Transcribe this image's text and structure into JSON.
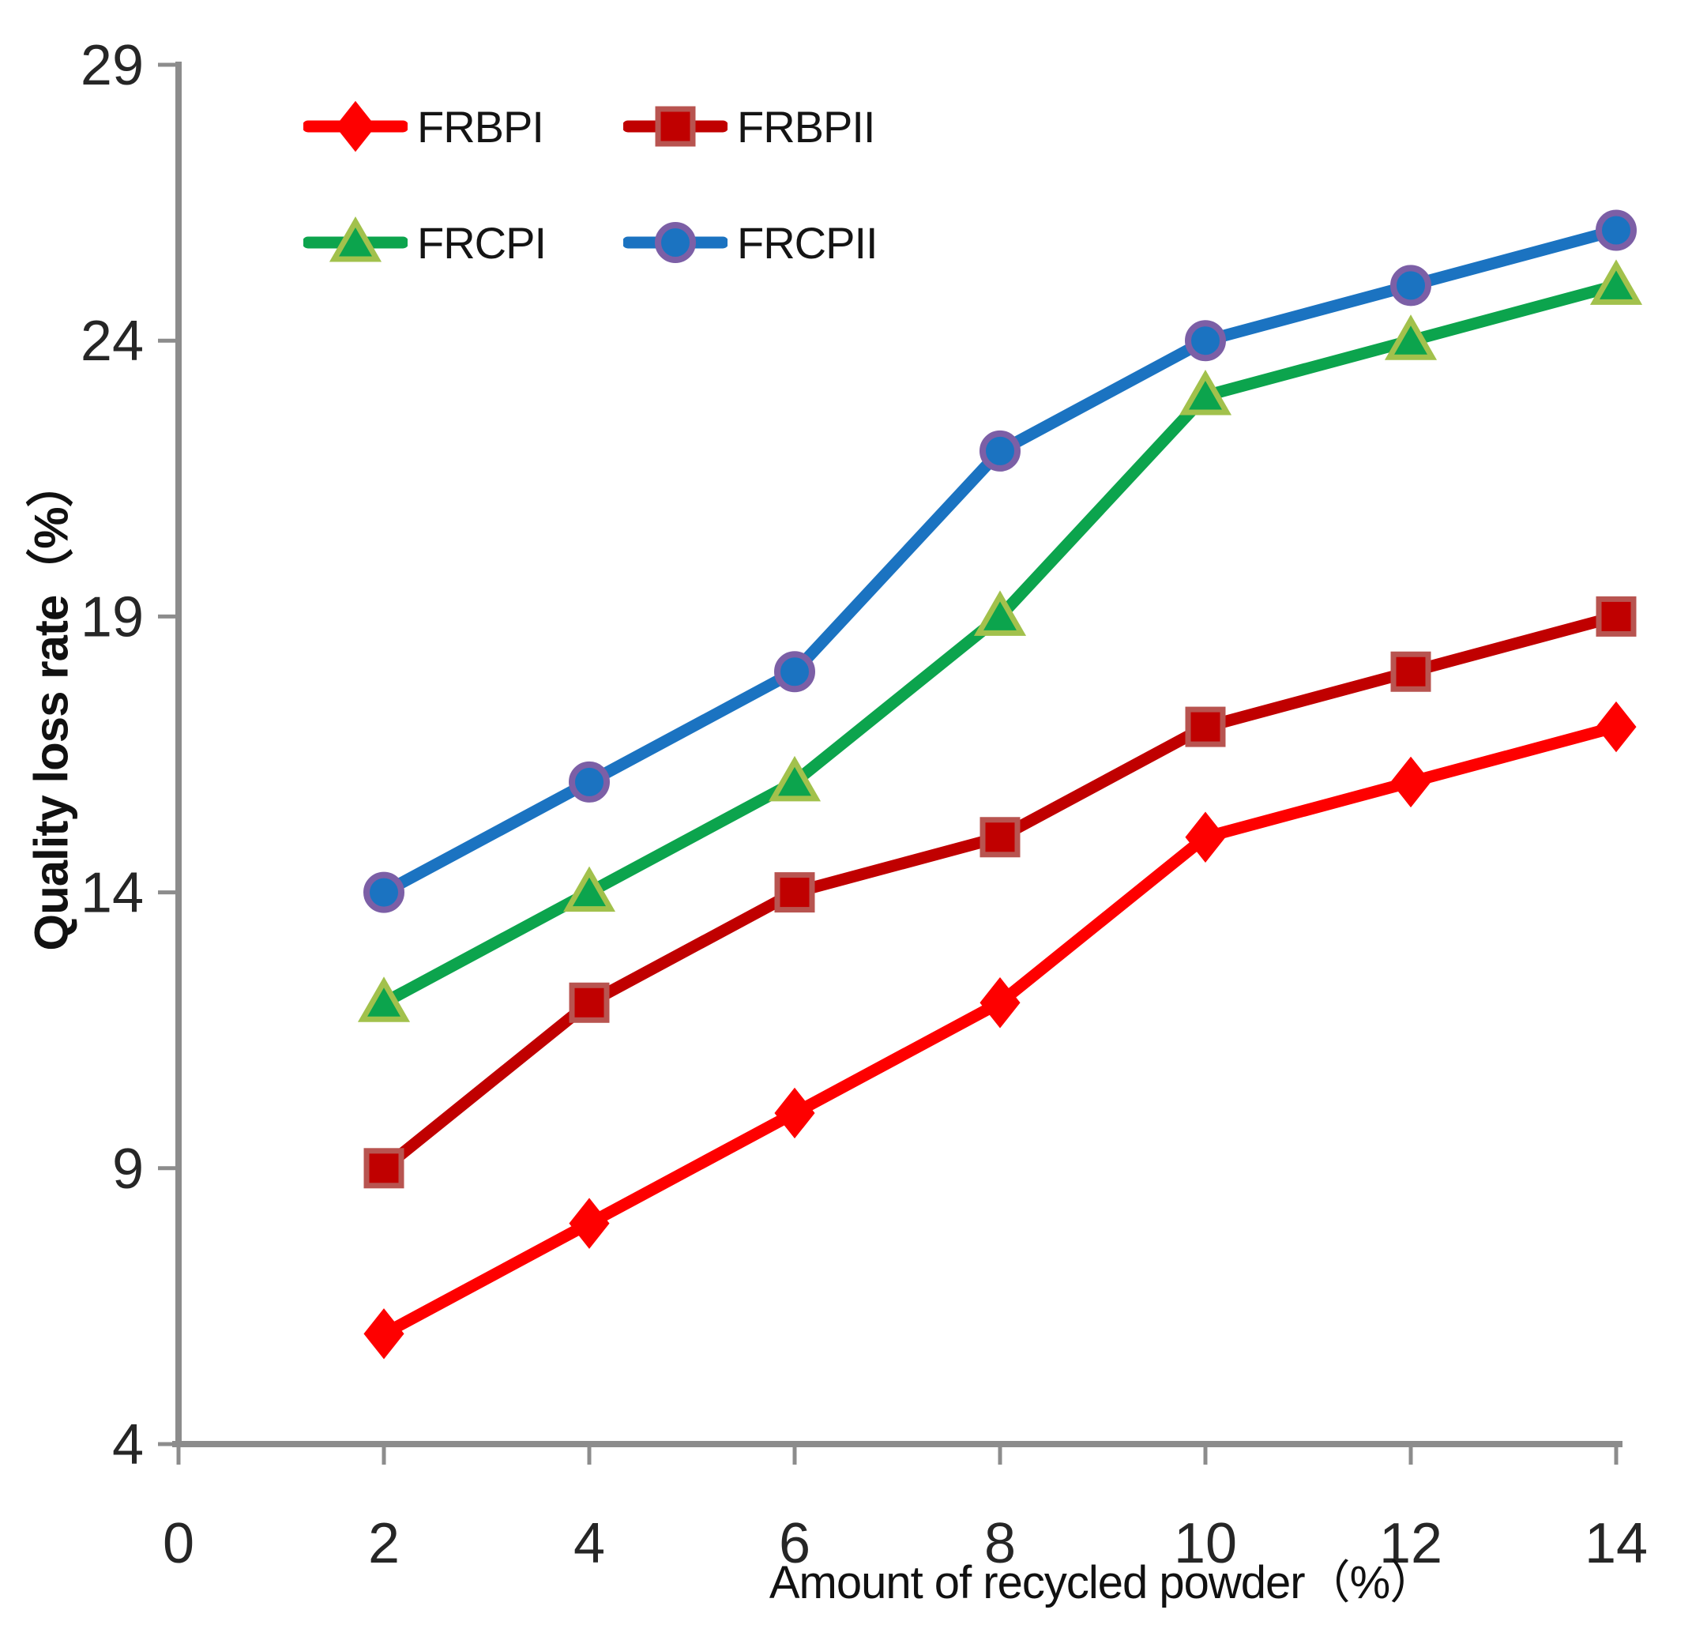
{
  "figure": {
    "background": "#ffffff"
  },
  "chart_data": {
    "type": "line",
    "title": "",
    "xlabel": "Amount of recycled powder（%）",
    "ylabel": "Quality loss rate（%）",
    "x": [
      2,
      4,
      6,
      8,
      10,
      12,
      14
    ],
    "x_ticks": [
      "0",
      "2",
      "4",
      "6",
      "8",
      "10",
      "12",
      "14"
    ],
    "x_tick_values": [
      0,
      2,
      4,
      6,
      8,
      10,
      12,
      14
    ],
    "y_ticks": [
      "4",
      "9",
      "14",
      "19",
      "24",
      "29"
    ],
    "y_tick_values": [
      4,
      9,
      14,
      19,
      24,
      29
    ],
    "xlim": [
      0,
      14
    ],
    "ylim": [
      4,
      29
    ],
    "grid": false,
    "legend_position": "inside-top-left",
    "axis_color": "#8C8C8C",
    "tick_label_color": "#262626",
    "series": [
      {
        "name": "FRBPI",
        "marker": "diamond",
        "color": "#FE0000",
        "marker_fill": "#FE0000",
        "marker_stroke": "#FE0000",
        "values": [
          6,
          8,
          10,
          12,
          15,
          16,
          17
        ]
      },
      {
        "name": "FRBPII",
        "marker": "square",
        "color": "#C00000",
        "marker_fill": "#C00000",
        "marker_stroke": "#B85450",
        "values": [
          9,
          12,
          14,
          15,
          17,
          18,
          19
        ]
      },
      {
        "name": "FRCPI",
        "marker": "triangle",
        "color": "#0CA44D",
        "marker_fill": "#0CA44D",
        "marker_stroke": "#A2C14C",
        "values": [
          12,
          14,
          16,
          19,
          23,
          24,
          25
        ]
      },
      {
        "name": "FRCPII",
        "marker": "circle",
        "color": "#1B73C1",
        "marker_fill": "#1B73C1",
        "marker_stroke": "#7C5FA6",
        "values": [
          14,
          16,
          18,
          22,
          24,
          25,
          26
        ]
      }
    ]
  }
}
